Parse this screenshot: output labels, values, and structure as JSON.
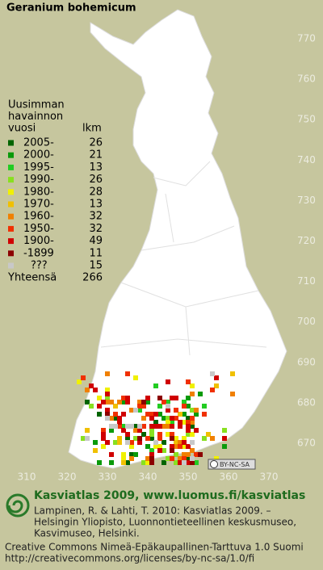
{
  "header": {
    "title": "Geranium bohemicum"
  },
  "legend": {
    "heading": [
      "Uusimman",
      "havainnon",
      "vuosi"
    ],
    "count_heading": "lkm",
    "rows": [
      {
        "label": "2005-",
        "count": 26,
        "color": "#006400"
      },
      {
        "label": "2000-",
        "count": 21,
        "color": "#0a9a0a"
      },
      {
        "label": "1995-",
        "count": 13,
        "color": "#22cc22"
      },
      {
        "label": "1990-",
        "count": 26,
        "color": "#88e020"
      },
      {
        "label": "1980-",
        "count": 28,
        "color": "#f0f000"
      },
      {
        "label": "1970-",
        "count": 13,
        "color": "#f0c000"
      },
      {
        "label": "1960-",
        "count": 32,
        "color": "#f08000"
      },
      {
        "label": "1950-",
        "count": 32,
        "color": "#f03000"
      },
      {
        "label": "1900-",
        "count": 49,
        "color": "#d00000"
      },
      {
        "label": "-1899",
        "count": 11,
        "color": "#8c0000"
      },
      {
        "label": "???",
        "count": 15,
        "color": "#c8c8c8"
      }
    ],
    "total_label": "Yhteensä",
    "total": 266
  },
  "map": {
    "northing": [
      770,
      760,
      750,
      740,
      730,
      720,
      710,
      700,
      690,
      680,
      670
    ],
    "easting": [
      310,
      320,
      330,
      340,
      350,
      360,
      370
    ],
    "license_badge": "BY-NC-SA"
  },
  "footer": {
    "brand": "Kasviatlas 2009, www.luomus.fi/kasviatlas",
    "citation": [
      "Lampinen, R. & Lahti, T. 2010: Kasviatlas 2009. –",
      "Helsingin Yliopisto, Luonnontieteellinen keskusmuseo,",
      "Kasvimuseo, Helsinki."
    ],
    "license": "Creative Commons Nimeä-Epäkaupallinen-Tarttuva 1.0 Suomi",
    "url": "http://creativecommons.org/licenses/by-nc-sa/1.0/fi"
  }
}
